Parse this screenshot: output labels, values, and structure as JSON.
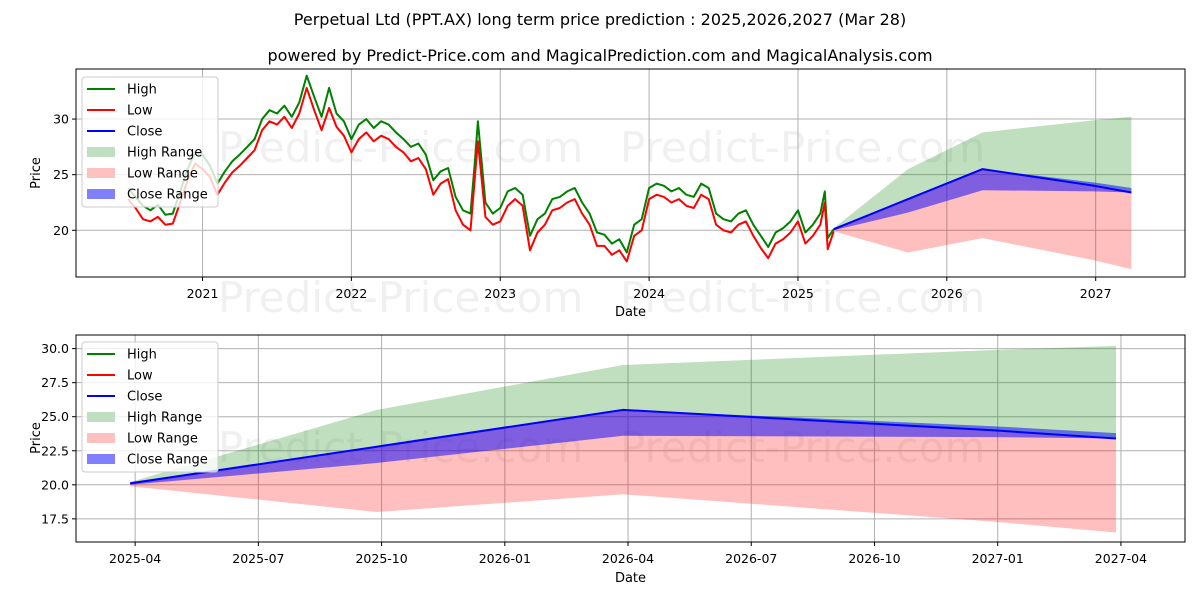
{
  "header": {
    "title": "Perpetual Ltd (PPT.AX) long term price prediction : 2025,2026,2027 (Mar 28)",
    "subtitle": "powered by Predict-Price.com and MagicalPrediction.com and MagicalAnalysis.com"
  },
  "watermark": "Predict-Price.com",
  "legend": [
    {
      "label": "High",
      "kind": "line",
      "color": "#008000"
    },
    {
      "label": "Low",
      "kind": "line",
      "color": "#ff0000"
    },
    {
      "label": "Close",
      "kind": "line",
      "color": "#0000ff"
    },
    {
      "label": "High Range",
      "kind": "patch",
      "color": "#c0dfc0"
    },
    {
      "label": "Low Range",
      "kind": "patch",
      "color": "#ffc0c0"
    },
    {
      "label": "Close Range",
      "kind": "patch",
      "color": "#8080ff"
    }
  ],
  "chart_data": [
    {
      "type": "line",
      "title": "Perpetual Ltd (PPT.AX) long term price prediction : 2025,2026,2027 (Mar 28)",
      "xlabel": "Date",
      "ylabel": "Price",
      "xlim": [
        2020.15,
        2027.6
      ],
      "ylim": [
        15.8,
        34.5
      ],
      "x_ticks": [
        2021,
        2022,
        2023,
        2024,
        2025,
        2026,
        2027
      ],
      "x_tick_labels": [
        "2021",
        "2022",
        "2023",
        "2024",
        "2025",
        "2026",
        "2027"
      ],
      "y_ticks": [
        20,
        25,
        30
      ],
      "y_tick_labels": [
        "20",
        "25",
        "30"
      ],
      "grid": true,
      "legend_position": "upper-left",
      "history": {
        "x": [
          2020.5,
          2020.55,
          2020.6,
          2020.65,
          2020.7,
          2020.75,
          2020.8,
          2020.85,
          2020.9,
          2020.95,
          2021.0,
          2021.05,
          2021.1,
          2021.15,
          2021.2,
          2021.25,
          2021.3,
          2021.35,
          2021.4,
          2021.45,
          2021.5,
          2021.55,
          2021.6,
          2021.65,
          2021.7,
          2021.75,
          2021.8,
          2021.85,
          2021.9,
          2021.95,
          2022.0,
          2022.05,
          2022.1,
          2022.15,
          2022.2,
          2022.25,
          2022.3,
          2022.35,
          2022.4,
          2022.45,
          2022.5,
          2022.55,
          2022.6,
          2022.65,
          2022.7,
          2022.75,
          2022.8,
          2022.83,
          2022.85,
          2022.9,
          2022.95,
          2023.0,
          2023.05,
          2023.1,
          2023.15,
          2023.2,
          2023.25,
          2023.3,
          2023.35,
          2023.4,
          2023.45,
          2023.5,
          2023.55,
          2023.6,
          2023.65,
          2023.7,
          2023.75,
          2023.8,
          2023.85,
          2023.9,
          2023.95,
          2024.0,
          2024.05,
          2024.1,
          2024.15,
          2024.2,
          2024.25,
          2024.3,
          2024.35,
          2024.4,
          2024.45,
          2024.5,
          2024.55,
          2024.6,
          2024.65,
          2024.7,
          2024.75,
          2024.8,
          2024.85,
          2024.9,
          2024.95,
          2025.0,
          2025.05,
          2025.1,
          2025.15,
          2025.18,
          2025.2,
          2025.24
        ],
        "high": [
          23.8,
          23.0,
          22.2,
          21.8,
          22.3,
          21.4,
          21.5,
          23.5,
          25.5,
          27.0,
          26.8,
          25.8,
          24.2,
          25.3,
          26.2,
          26.8,
          27.5,
          28.2,
          30.0,
          30.8,
          30.5,
          31.2,
          30.2,
          31.5,
          33.9,
          32.0,
          30.2,
          32.8,
          30.5,
          29.8,
          28.2,
          29.5,
          30.0,
          29.2,
          29.8,
          29.5,
          28.8,
          28.2,
          27.5,
          27.8,
          26.8,
          24.5,
          25.3,
          25.6,
          23.0,
          21.8,
          21.5,
          26.2,
          29.8,
          22.5,
          21.5,
          22.0,
          23.5,
          23.8,
          23.2,
          19.5,
          21.0,
          21.5,
          22.8,
          23.0,
          23.5,
          23.8,
          22.5,
          21.5,
          19.8,
          19.6,
          18.8,
          19.2,
          18.0,
          20.5,
          21.0,
          23.8,
          24.2,
          24.0,
          23.5,
          23.8,
          23.2,
          23.0,
          24.2,
          23.8,
          21.5,
          21.0,
          20.8,
          21.5,
          21.8,
          20.5,
          19.5,
          18.5,
          19.8,
          20.2,
          20.8,
          21.8,
          19.8,
          20.5,
          21.5,
          23.5,
          19.3,
          20.1
        ],
        "low": [
          22.8,
          22.0,
          21.0,
          20.8,
          21.2,
          20.5,
          20.6,
          22.5,
          24.5,
          26.0,
          25.5,
          24.8,
          23.2,
          24.3,
          25.2,
          25.8,
          26.5,
          27.2,
          29.0,
          29.8,
          29.5,
          30.2,
          29.2,
          30.5,
          32.8,
          30.8,
          29.0,
          31.0,
          29.3,
          28.5,
          27.0,
          28.2,
          28.8,
          28.0,
          28.5,
          28.2,
          27.5,
          27.0,
          26.2,
          26.5,
          25.5,
          23.2,
          24.2,
          24.6,
          21.8,
          20.5,
          20.0,
          24.8,
          28.0,
          21.2,
          20.5,
          20.8,
          22.2,
          22.8,
          22.2,
          18.2,
          19.8,
          20.5,
          21.8,
          22.0,
          22.5,
          22.8,
          21.5,
          20.5,
          18.6,
          18.6,
          17.8,
          18.2,
          17.2,
          19.5,
          20.0,
          22.8,
          23.2,
          23.0,
          22.5,
          22.8,
          22.2,
          22.0,
          23.2,
          22.8,
          20.5,
          20.0,
          19.8,
          20.5,
          20.8,
          19.5,
          18.4,
          17.5,
          18.8,
          19.2,
          19.8,
          20.8,
          18.8,
          19.5,
          20.5,
          22.5,
          18.3,
          19.9
        ]
      },
      "forecast": {
        "x": [
          2025.24,
          2025.74,
          2026.24,
          2026.99,
          2027.24
        ],
        "close": [
          20.1,
          22.8,
          25.5,
          24.0,
          23.4
        ],
        "close_range_upper": [
          20.2,
          22.8,
          25.5,
          24.3,
          23.8
        ],
        "close_range_lower": [
          20.0,
          21.6,
          23.6,
          23.5,
          23.4
        ],
        "high_range_upper": [
          20.2,
          25.5,
          28.8,
          29.9,
          30.2
        ],
        "low_range_lower": [
          19.9,
          18.0,
          19.3,
          17.3,
          16.5
        ]
      }
    },
    {
      "type": "line",
      "title": "",
      "xlabel": "Date",
      "ylabel": "Price",
      "xlim": [
        2025.13,
        2027.38
      ],
      "ylim": [
        15.8,
        31.0
      ],
      "x_ticks": [
        2025.25,
        2025.5,
        2025.75,
        2026.0,
        2026.25,
        2026.5,
        2026.75,
        2027.0,
        2027.25
      ],
      "x_tick_labels": [
        "2025-04",
        "2025-07",
        "2025-10",
        "2026-01",
        "2026-04",
        "2026-07",
        "2026-10",
        "2027-01",
        "2027-04"
      ],
      "y_ticks": [
        17.5,
        20.0,
        22.5,
        25.0,
        27.5,
        30.0
      ],
      "y_tick_labels": [
        "17.5",
        "20.0",
        "22.5",
        "25.0",
        "27.5",
        "30.0"
      ],
      "grid": true,
      "legend_position": "upper-left",
      "forecast": {
        "x": [
          2025.24,
          2025.74,
          2026.24,
          2026.99,
          2027.24
        ],
        "close": [
          20.1,
          22.8,
          25.5,
          24.0,
          23.4
        ],
        "close_range_upper": [
          20.2,
          22.8,
          25.5,
          24.3,
          23.8
        ],
        "close_range_lower": [
          20.0,
          21.6,
          23.6,
          23.5,
          23.4
        ],
        "high_range_upper": [
          20.2,
          25.5,
          28.8,
          29.9,
          30.2
        ],
        "low_range_lower": [
          19.9,
          18.0,
          19.3,
          17.3,
          16.5
        ]
      }
    }
  ]
}
